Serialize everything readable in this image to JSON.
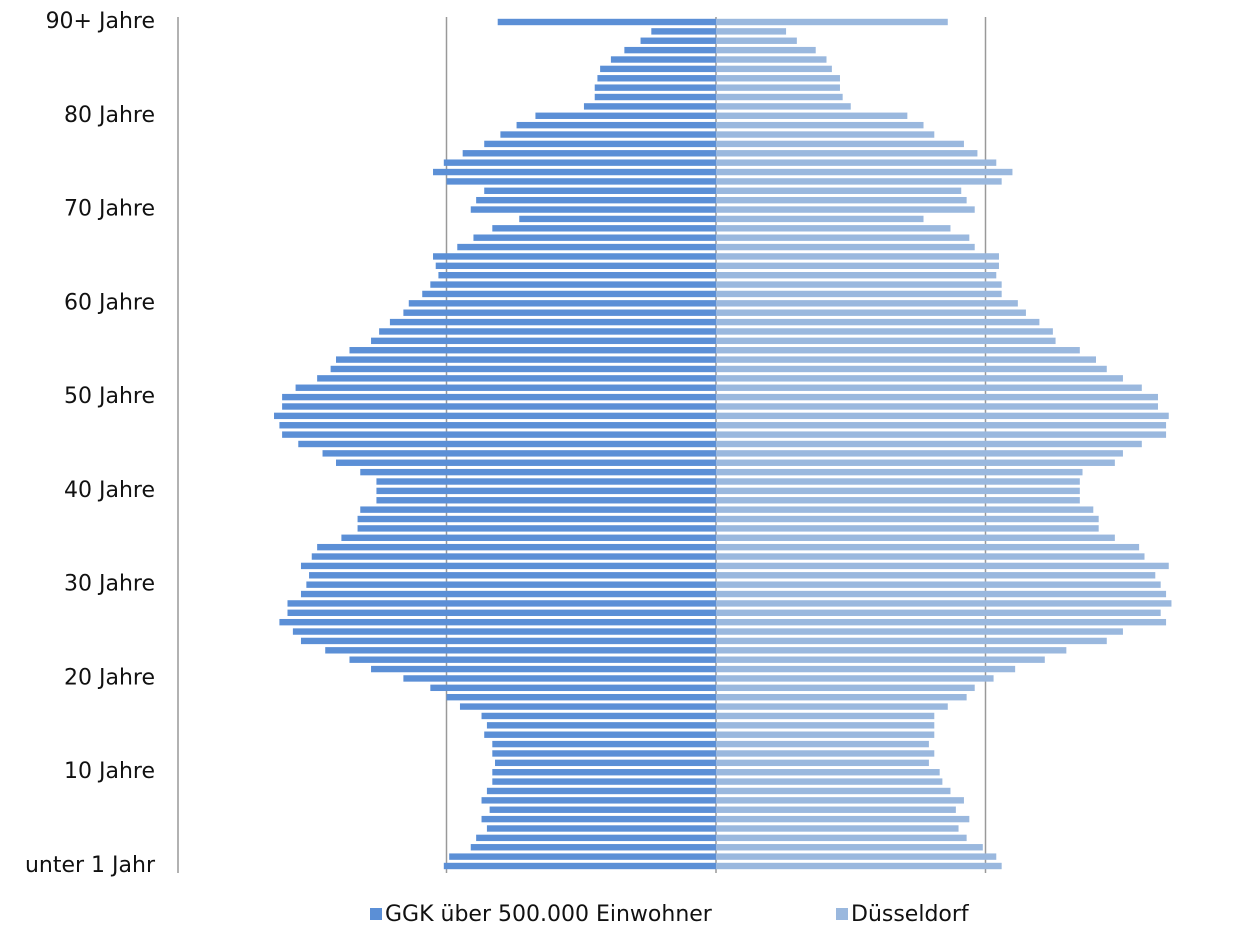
{
  "chart_data": {
    "type": "pyramid",
    "categories": [
      "unter 1 Jahr",
      null,
      null,
      null,
      null,
      null,
      null,
      null,
      null,
      null,
      "10 Jahre",
      null,
      null,
      null,
      null,
      null,
      null,
      null,
      null,
      null,
      "20 Jahre",
      null,
      null,
      null,
      null,
      null,
      null,
      null,
      null,
      null,
      "30 Jahre",
      null,
      null,
      null,
      null,
      null,
      null,
      null,
      null,
      null,
      "40 Jahre",
      null,
      null,
      null,
      null,
      null,
      null,
      null,
      null,
      null,
      "50 Jahre",
      null,
      null,
      null,
      null,
      null,
      null,
      null,
      null,
      null,
      "60 Jahre",
      null,
      null,
      null,
      null,
      null,
      null,
      null,
      null,
      null,
      "70 Jahre",
      null,
      null,
      null,
      null,
      null,
      null,
      null,
      null,
      null,
      "80 Jahre",
      null,
      null,
      null,
      null,
      null,
      null,
      null,
      null,
      null,
      "90+ Jahre"
    ],
    "series": [
      {
        "name": "GGK über 500.000 Einwohner",
        "color": "#5b8fd6",
        "side": "left",
        "values": [
          1.01,
          0.99,
          0.91,
          0.89,
          0.85,
          0.87,
          0.84,
          0.87,
          0.85,
          0.83,
          0.83,
          0.82,
          0.83,
          0.83,
          0.86,
          0.85,
          0.87,
          0.95,
          1.0,
          1.06,
          1.16,
          1.28,
          1.36,
          1.45,
          1.54,
          1.57,
          1.62,
          1.59,
          1.59,
          1.54,
          1.52,
          1.51,
          1.54,
          1.5,
          1.48,
          1.39,
          1.33,
          1.33,
          1.32,
          1.26,
          1.26,
          1.26,
          1.32,
          1.41,
          1.46,
          1.55,
          1.61,
          1.62,
          1.64,
          1.61,
          1.61,
          1.56,
          1.48,
          1.43,
          1.41,
          1.36,
          1.28,
          1.25,
          1.21,
          1.16,
          1.14,
          1.09,
          1.06,
          1.03,
          1.04,
          1.05,
          0.96,
          0.9,
          0.83,
          0.73,
          0.91,
          0.89,
          0.86,
          1.0,
          1.05,
          1.01,
          0.94,
          0.86,
          0.8,
          0.74,
          0.67,
          0.49,
          0.45,
          0.45,
          0.44,
          0.43,
          0.39,
          0.34,
          0.28,
          0.24,
          0.81
        ]
      },
      {
        "name": "Düsseldorf",
        "color": "#9ab8de",
        "side": "right",
        "values": [
          1.06,
          1.04,
          0.99,
          0.93,
          0.9,
          0.94,
          0.89,
          0.92,
          0.87,
          0.84,
          0.83,
          0.79,
          0.81,
          0.79,
          0.81,
          0.81,
          0.81,
          0.86,
          0.93,
          0.96,
          1.03,
          1.11,
          1.22,
          1.3,
          1.45,
          1.51,
          1.67,
          1.65,
          1.69,
          1.67,
          1.65,
          1.63,
          1.68,
          1.59,
          1.57,
          1.48,
          1.42,
          1.42,
          1.4,
          1.35,
          1.35,
          1.35,
          1.36,
          1.48,
          1.51,
          1.58,
          1.67,
          1.67,
          1.68,
          1.64,
          1.64,
          1.58,
          1.51,
          1.45,
          1.41,
          1.35,
          1.26,
          1.25,
          1.2,
          1.15,
          1.12,
          1.06,
          1.06,
          1.04,
          1.05,
          1.05,
          0.96,
          0.94,
          0.87,
          0.77,
          0.96,
          0.93,
          0.91,
          1.06,
          1.1,
          1.04,
          0.97,
          0.92,
          0.81,
          0.77,
          0.71,
          0.5,
          0.47,
          0.46,
          0.46,
          0.43,
          0.41,
          0.37,
          0.3,
          0.26,
          0.86
        ]
      }
    ],
    "xlim": [
      -2,
      2
    ],
    "xticks": [
      -1,
      0,
      1
    ],
    "grid": true,
    "legend": "bottom"
  }
}
